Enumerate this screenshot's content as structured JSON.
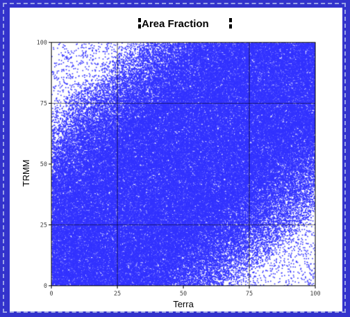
{
  "chart_data": {
    "type": "scatter",
    "title": "Area Fraction",
    "xlabel": "Terra",
    "ylabel": "TRMM",
    "xlim": [
      0,
      100
    ],
    "ylim": [
      0,
      100
    ],
    "xticks": [
      "0",
      "25",
      "50",
      "75",
      "100"
    ],
    "yticks": [
      "0",
      "25",
      "50",
      "75",
      "100"
    ],
    "gridlines_at": [
      25,
      75
    ],
    "grid": true,
    "point_color": "#3333ff",
    "description_of_density": "dense diagonal band along y≈x; sparse speckle in upper-left and lower-right corners"
  },
  "colors": {
    "background": "#3333cc",
    "plot_fill": "#3333ff",
    "frame_dash": "#9aa3e6"
  }
}
